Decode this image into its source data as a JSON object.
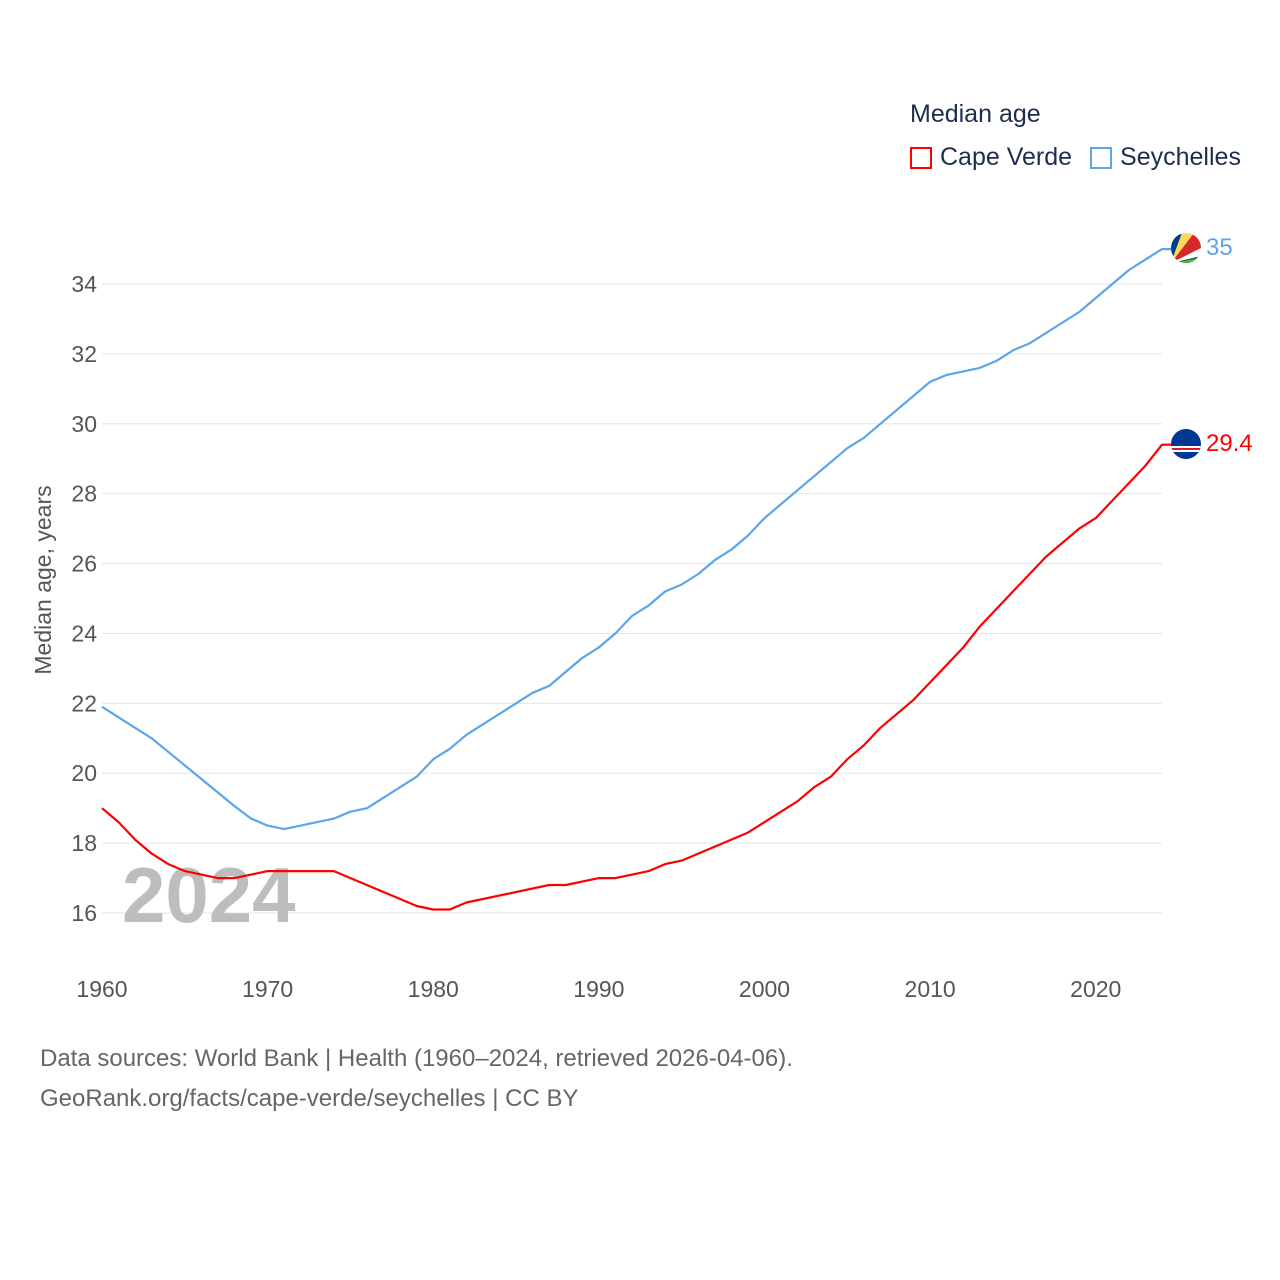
{
  "chart_data": {
    "type": "line",
    "title": "Median age",
    "ylabel": "Median age, years",
    "xlabel": "",
    "xlim": [
      1960,
      2024
    ],
    "ylim": [
      15,
      35.5
    ],
    "x_ticks": [
      1960,
      1970,
      1980,
      1990,
      2000,
      2010,
      2020
    ],
    "y_ticks": [
      16,
      18,
      20,
      22,
      24,
      26,
      28,
      30,
      32,
      34
    ],
    "grid": true,
    "legend_position": "top-right",
    "year_watermark": "2024",
    "series": [
      {
        "name": "Cape Verde",
        "color": "#ff0000",
        "end_label": "29.4",
        "flag": "cape-verde-flag",
        "points": [
          [
            1960,
            19.0
          ],
          [
            1961,
            18.6
          ],
          [
            1962,
            18.1
          ],
          [
            1963,
            17.7
          ],
          [
            1964,
            17.4
          ],
          [
            1965,
            17.2
          ],
          [
            1966,
            17.1
          ],
          [
            1967,
            17.0
          ],
          [
            1968,
            17.0
          ],
          [
            1969,
            17.1
          ],
          [
            1970,
            17.2
          ],
          [
            1974,
            17.2
          ],
          [
            1979,
            16.2
          ],
          [
            1980,
            16.1
          ],
          [
            1981,
            16.1
          ],
          [
            1982,
            16.3
          ],
          [
            1987,
            16.8
          ],
          [
            1988,
            16.8
          ],
          [
            1990,
            17.0
          ],
          [
            1991,
            17.0
          ],
          [
            1993,
            17.2
          ],
          [
            1994,
            17.4
          ],
          [
            1995,
            17.5
          ],
          [
            1999,
            18.3
          ],
          [
            2002,
            19.2
          ],
          [
            2003,
            19.6
          ],
          [
            2004,
            19.9
          ],
          [
            2005,
            20.4
          ],
          [
            2006,
            20.8
          ],
          [
            2007,
            21.3
          ],
          [
            2009,
            22.1
          ],
          [
            2012,
            23.6
          ],
          [
            2013,
            24.2
          ],
          [
            2017,
            26.2
          ],
          [
            2019,
            27.0
          ],
          [
            2020,
            27.3
          ],
          [
            2023,
            28.8
          ],
          [
            2024,
            29.4
          ]
        ]
      },
      {
        "name": "Seychelles",
        "color": "#5aa5ec",
        "end_label": "35",
        "flag": "seychelles-flag",
        "points": [
          [
            1960,
            21.9
          ],
          [
            1963,
            21.0
          ],
          [
            1968,
            19.06
          ],
          [
            1969,
            18.7
          ],
          [
            1970,
            18.5
          ],
          [
            1971,
            18.4
          ],
          [
            1974,
            18.7
          ],
          [
            1975,
            18.9
          ],
          [
            1976,
            19.0
          ],
          [
            1979,
            19.9
          ],
          [
            1980,
            20.4
          ],
          [
            1981,
            20.7
          ],
          [
            1982,
            21.1
          ],
          [
            1986,
            22.3
          ],
          [
            1987,
            22.5
          ],
          [
            1989,
            23.3
          ],
          [
            1990,
            23.6
          ],
          [
            1991,
            24.0
          ],
          [
            1992,
            24.5
          ],
          [
            1993,
            24.8
          ],
          [
            1994,
            25.2
          ],
          [
            1995,
            25.4
          ],
          [
            1996,
            25.7
          ],
          [
            1997,
            26.1
          ],
          [
            1998,
            26.4
          ],
          [
            1999,
            26.8
          ],
          [
            2000,
            27.3
          ],
          [
            2005,
            29.3
          ],
          [
            2006,
            29.6
          ],
          [
            2010,
            31.2
          ],
          [
            2011,
            31.4
          ],
          [
            2013,
            31.6
          ],
          [
            2014,
            31.8
          ],
          [
            2015,
            32.1
          ],
          [
            2016,
            32.3
          ],
          [
            2019,
            33.2
          ],
          [
            2022,
            34.4
          ],
          [
            2024,
            35.0
          ]
        ]
      }
    ]
  },
  "footer": {
    "line1": "Data sources: World Bank | Health (1960–2024, retrieved 2026-04-06).",
    "line2": "GeoRank.org/facts/cape-verde/seychelles | CC BY"
  }
}
